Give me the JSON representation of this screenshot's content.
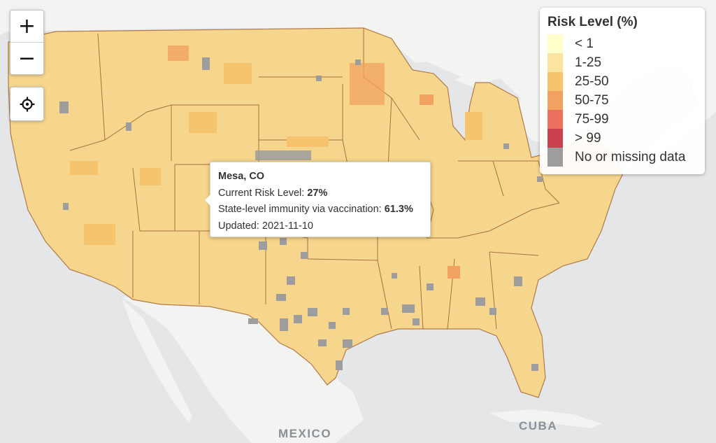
{
  "map": {
    "labels": {
      "mexico": "MEXICO",
      "cuba": "CUBA"
    },
    "colors": {
      "water": "#e4e6e8",
      "land": "#f4f4f2",
      "county_fill": "#f6d58d",
      "border": "#b07a4a"
    }
  },
  "controls": {
    "zoom_in": "+",
    "zoom_out": "−",
    "locate_icon": "crosshair-icon"
  },
  "legend": {
    "title": "Risk Level (%)",
    "items": [
      {
        "label": "< 1",
        "color": "#ffffcc"
      },
      {
        "label": "1-25",
        "color": "#fbe3a0"
      },
      {
        "label": "25-50",
        "color": "#f6c46e"
      },
      {
        "label": "50-75",
        "color": "#f1a261"
      },
      {
        "label": "75-99",
        "color": "#e9715e"
      },
      {
        "label": "> 99",
        "color": "#c9404f"
      },
      {
        "label": "No or missing data",
        "color": "#9d9d9d"
      }
    ]
  },
  "tooltip": {
    "place": "Mesa, CO",
    "risk_label": "Current Risk Level: ",
    "risk_value": "27%",
    "immunity_label": "State-level immunity via vaccination: ",
    "immunity_value": "61.3%",
    "updated_label": "Updated: ",
    "updated_value": "2021-11-10"
  }
}
